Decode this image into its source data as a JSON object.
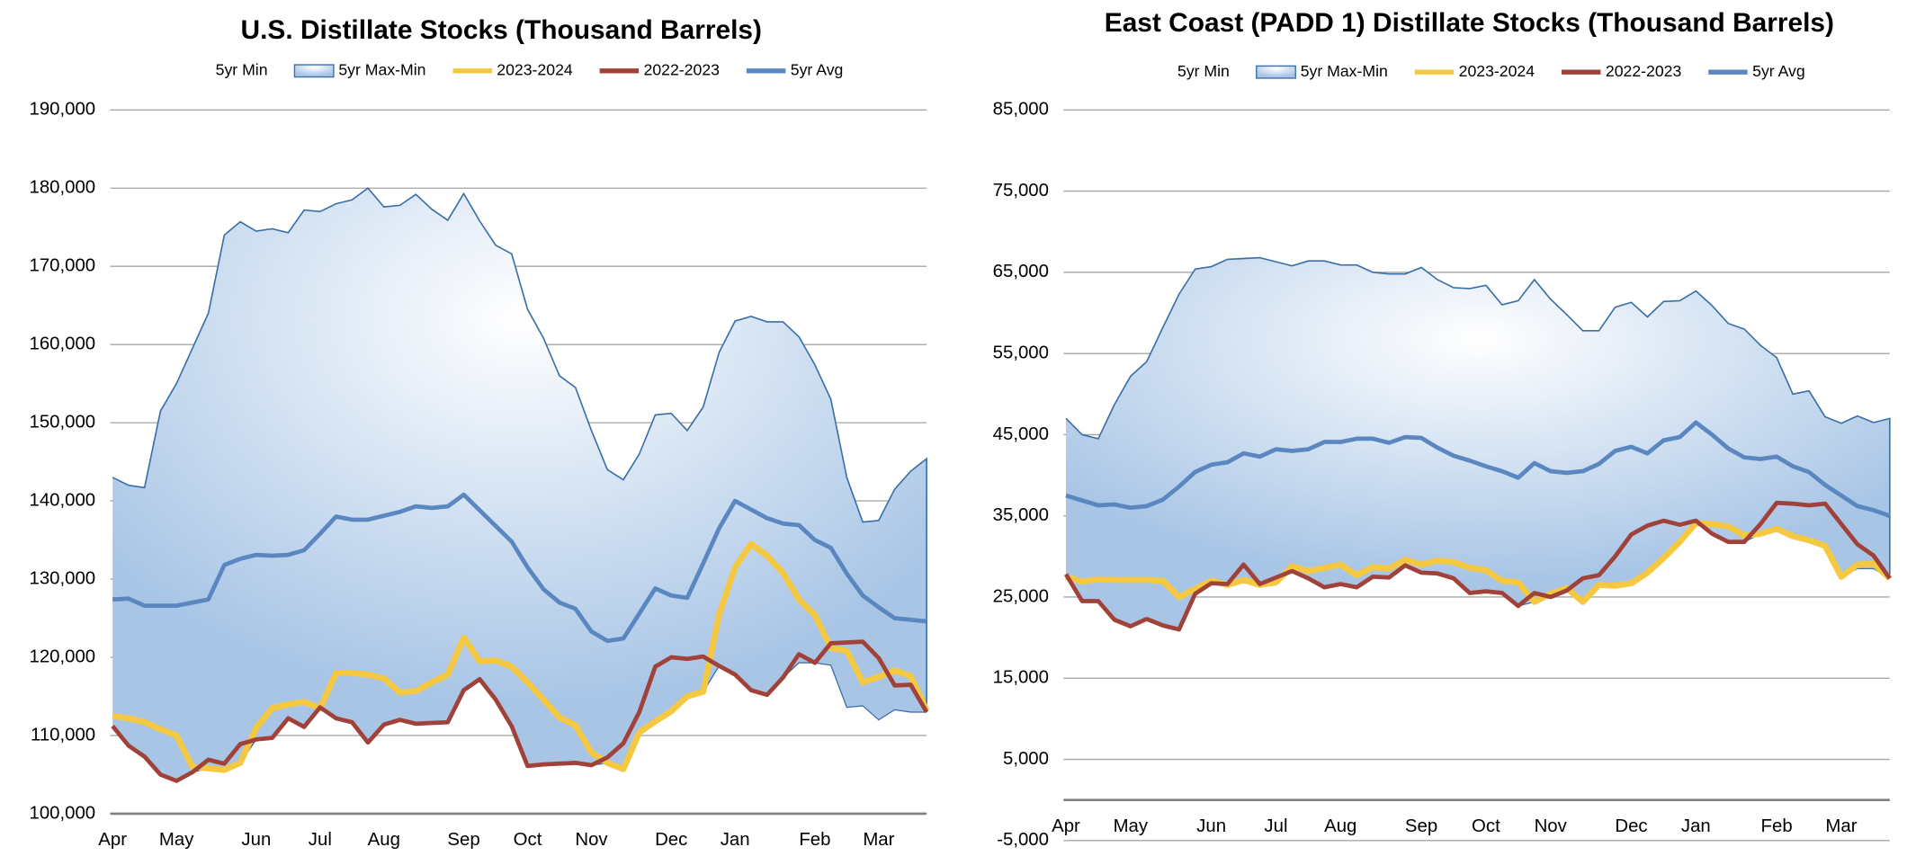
{
  "chart_data": [
    {
      "type": "line",
      "title": "U.S. Distillate Stocks (Thousand Barrels)",
      "categories": [
        "Apr",
        null,
        null,
        null,
        "May",
        null,
        null,
        null,
        null,
        "Jun",
        null,
        null,
        null,
        "Jul",
        null,
        null,
        null,
        "Aug",
        null,
        null,
        null,
        null,
        "Sep",
        null,
        null,
        null,
        "Oct",
        null,
        null,
        null,
        "Nov",
        null,
        null,
        null,
        null,
        "Dec",
        null,
        null,
        null,
        "Jan",
        null,
        null,
        null,
        null,
        "Feb",
        null,
        null,
        null,
        "Mar",
        null,
        null,
        null
      ],
      "ylim": [
        100000,
        190000
      ],
      "yticks": [
        {
          "value": 100000,
          "label": "100,000"
        },
        {
          "value": 110000,
          "label": "110,000"
        },
        {
          "value": 120000,
          "label": "120,000"
        },
        {
          "value": 130000,
          "label": "130,000"
        },
        {
          "value": 140000,
          "label": "140,000"
        },
        {
          "value": 150000,
          "label": "150,000"
        },
        {
          "value": 160000,
          "label": "160,000"
        },
        {
          "value": 170000,
          "label": "170,000"
        },
        {
          "value": 180000,
          "label": "180,000"
        },
        {
          "value": 190000,
          "label": "190,000"
        }
      ],
      "grid": true,
      "series": [
        {
          "name": "5yr Min",
          "color": "#ffffff",
          "values": [
            111200,
            108700,
            107300,
            105000,
            104200,
            105300,
            105800,
            105600,
            106500,
            109500,
            109700,
            112200,
            111100,
            113500,
            112200,
            111700,
            109100,
            111400,
            112000,
            111500,
            111600,
            111700,
            115800,
            117200,
            114600,
            111200,
            106100,
            106300,
            106400,
            106500,
            106200,
            106500,
            105700,
            110400,
            111800,
            113100,
            115000,
            115600,
            118900,
            117800,
            115800,
            115200,
            117400,
            119300,
            119300,
            119000,
            113600,
            113800,
            112000,
            113300,
            113000,
            113000
          ]
        },
        {
          "name": "5yr Max-Min",
          "color": "#a8c5e6",
          "fill": "area",
          "stacked": true,
          "values": [
            31800,
            33300,
            34400,
            46500,
            50800,
            54200,
            58200,
            68400,
            69200,
            65000,
            65100,
            62100,
            66100,
            63500,
            65800,
            66800,
            70900,
            66200,
            65800,
            67700,
            65700,
            64200,
            63500,
            58600,
            58100,
            60400,
            58400,
            54500,
            49600,
            48000,
            42800,
            37500,
            37000,
            35600,
            39200,
            38100,
            34000,
            36400,
            40100,
            45200,
            47800,
            47700,
            45500,
            41700,
            38100,
            34000,
            29400,
            23500,
            25500,
            28200,
            30800,
            32400
          ]
        },
        {
          "name": "2023-2024",
          "color": "#f5c842",
          "values": [
            112500,
            112200,
            111700,
            110800,
            110000,
            106000,
            105800,
            105600,
            106500,
            111000,
            113500,
            114000,
            114300,
            113500,
            118000,
            118000,
            117800,
            117300,
            115500,
            115700,
            116800,
            117800,
            122500,
            119500,
            119600,
            118800,
            116800,
            114600,
            112300,
            111300,
            107800,
            106500,
            105700,
            110400,
            111800,
            113100,
            115000,
            115600,
            125500,
            131500,
            134500,
            133000,
            130800,
            127400,
            125400,
            121200,
            120800,
            116800,
            117500,
            118300,
            117600,
            113200
          ]
        },
        {
          "name": "2022-2023",
          "color": "#a0413a",
          "values": [
            111200,
            108700,
            107300,
            105000,
            104200,
            105300,
            106900,
            106400,
            108900,
            109500,
            109700,
            112200,
            111100,
            113600,
            112200,
            111700,
            109100,
            111400,
            112000,
            111500,
            111600,
            111700,
            115800,
            117200,
            114600,
            111200,
            106100,
            106300,
            106400,
            106500,
            106200,
            107200,
            109000,
            113000,
            118800,
            120000,
            119800,
            120100,
            118900,
            117800,
            115800,
            115200,
            117400,
            120400,
            119300,
            121800,
            121900,
            122000,
            119900,
            116400,
            116500,
            113000
          ]
        },
        {
          "name": "5yr Avg",
          "color": "#5b87c1",
          "values": [
            127400,
            127500,
            126600,
            126600,
            126600,
            127000,
            127400,
            131800,
            132600,
            133100,
            133000,
            133100,
            133700,
            135800,
            138000,
            137600,
            137600,
            138100,
            138600,
            139300,
            139100,
            139300,
            140800,
            138800,
            136800,
            134800,
            131500,
            128700,
            127000,
            126200,
            123300,
            122100,
            122400,
            125600,
            128800,
            127900,
            127600,
            132000,
            136500,
            140000,
            138900,
            137800,
            137100,
            136900,
            135000,
            134000,
            130700,
            127900,
            126400,
            125000,
            124800,
            124600
          ]
        }
      ]
    },
    {
      "type": "line",
      "title": "East Coast (PADD 1) Distillate Stocks (Thousand Barrels)",
      "categories": [
        "Apr",
        null,
        null,
        null,
        "May",
        null,
        null,
        null,
        null,
        "Jun",
        null,
        null,
        null,
        "Jul",
        null,
        null,
        null,
        "Aug",
        null,
        null,
        null,
        null,
        "Sep",
        null,
        null,
        null,
        "Oct",
        null,
        null,
        null,
        "Nov",
        null,
        null,
        null,
        null,
        "Dec",
        null,
        null,
        null,
        "Jan",
        null,
        null,
        null,
        null,
        "Feb",
        null,
        null,
        null,
        "Mar",
        null,
        null,
        null
      ],
      "ylim": [
        -5000,
        85000
      ],
      "yticks": [
        {
          "value": -5000,
          "label": "-5,000"
        },
        {
          "value": 5000,
          "label": "5,000"
        },
        {
          "value": 15000,
          "label": "15,000"
        },
        {
          "value": 25000,
          "label": "25,000"
        },
        {
          "value": 35000,
          "label": "35,000"
        },
        {
          "value": 45000,
          "label": "45,000"
        },
        {
          "value": 55000,
          "label": "55,000"
        },
        {
          "value": 65000,
          "label": "65,000"
        },
        {
          "value": 75000,
          "label": "75,000"
        },
        {
          "value": 85000,
          "label": "85,000"
        }
      ],
      "grid": true,
      "series": [
        {
          "name": "5yr Min",
          "color": "#ffffff",
          "values": [
            27500,
            24500,
            24500,
            22200,
            21400,
            22300,
            21500,
            21000,
            25400,
            26700,
            26500,
            27100,
            26500,
            26800,
            28200,
            27300,
            26200,
            26600,
            26200,
            27500,
            27400,
            28900,
            28000,
            27900,
            27300,
            25500,
            25700,
            25500,
            23900,
            24400,
            25000,
            25800,
            24400,
            26500,
            26400,
            26700,
            28000,
            29800,
            31800,
            34100,
            32800,
            31800,
            31800,
            32800,
            33400,
            32500,
            32000,
            31300,
            27500,
            28500,
            28500,
            27300
          ]
        },
        {
          "name": "5yr Max-Min",
          "color": "#a8c5e6",
          "fill": "area",
          "stacked": true,
          "values": [
            19500,
            20500,
            20000,
            26500,
            30800,
            31700,
            36700,
            41300,
            40000,
            39000,
            40100,
            39600,
            40300,
            39500,
            37600,
            39100,
            40200,
            39300,
            39700,
            37500,
            37400,
            35900,
            37600,
            36200,
            35800,
            37500,
            37700,
            35500,
            37600,
            39700,
            36700,
            34000,
            33400,
            31300,
            34300,
            34600,
            31500,
            31600,
            29700,
            28600,
            28100,
            26900,
            26200,
            23200,
            21100,
            17500,
            18400,
            15900,
            18900,
            18800,
            18000,
            19700
          ]
        },
        {
          "name": "2023-2024",
          "color": "#f5c842",
          "values": [
            27500,
            26900,
            27200,
            27100,
            27100,
            27100,
            27000,
            25000,
            26000,
            27000,
            26500,
            27100,
            26500,
            26800,
            28800,
            28200,
            28600,
            29000,
            27700,
            28700,
            28500,
            29600,
            29000,
            29500,
            29300,
            28600,
            28300,
            27000,
            26800,
            24400,
            25400,
            26100,
            24400,
            26500,
            26400,
            26700,
            28000,
            29800,
            31800,
            34100,
            34000,
            33700,
            32600,
            32800,
            33400,
            32500,
            32000,
            31300,
            27500,
            29000,
            29100,
            27300
          ]
        },
        {
          "name": "2022-2023",
          "color": "#a0413a",
          "values": [
            27800,
            24500,
            24500,
            22200,
            21400,
            22300,
            21500,
            21000,
            25400,
            26700,
            26600,
            29000,
            26600,
            27400,
            28200,
            27300,
            26200,
            26600,
            26200,
            27500,
            27400,
            28900,
            28000,
            27900,
            27300,
            25500,
            25700,
            25500,
            23900,
            25500,
            25000,
            25800,
            27300,
            27700,
            30000,
            32700,
            33800,
            34400,
            33900,
            34400,
            32800,
            31800,
            31800,
            34000,
            36600,
            36500,
            36300,
            36500,
            34000,
            31500,
            30100,
            27300
          ]
        },
        {
          "name": "5yr Avg",
          "color": "#5b87c1",
          "values": [
            37500,
            36900,
            36300,
            36400,
            36000,
            36200,
            37000,
            38600,
            40400,
            41300,
            41600,
            42700,
            42300,
            43200,
            43000,
            43200,
            44100,
            44100,
            44500,
            44500,
            44000,
            44700,
            44600,
            43400,
            42400,
            41800,
            41100,
            40500,
            39700,
            41500,
            40500,
            40300,
            40500,
            41400,
            43000,
            43500,
            42700,
            44300,
            44700,
            46500,
            45000,
            43300,
            42200,
            42000,
            42300,
            41100,
            40400,
            38800,
            37500,
            36200,
            35700,
            35000
          ]
        }
      ]
    }
  ]
}
